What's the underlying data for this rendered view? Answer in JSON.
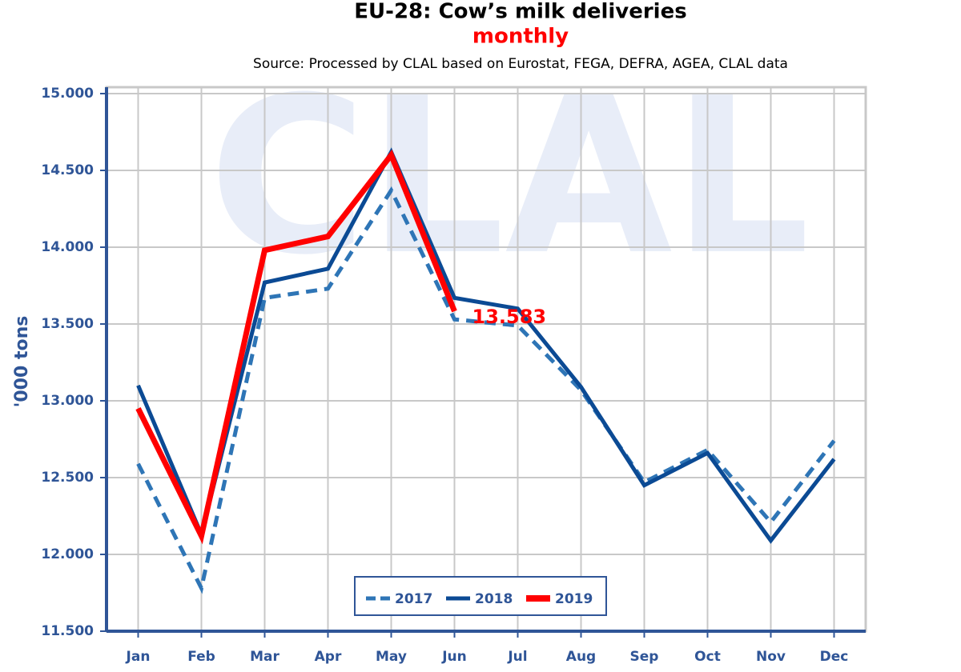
{
  "chart_data": {
    "type": "line",
    "title": "EU-28: Cow’s milk deliveries",
    "subtitle": "monthly",
    "source": "Source: Processed by CLAL based on Eurostat, FEGA, DEFRA, AGEA, CLAL data",
    "watermark": "CLAL",
    "y_label": "'000 tons",
    "categories": [
      "Jan",
      "Feb",
      "Mar",
      "Apr",
      "May",
      "Jun",
      "Jul",
      "Aug",
      "Sep",
      "Oct",
      "Nov",
      "Dec"
    ],
    "series": [
      {
        "name": "2017",
        "color": "#2e75b6",
        "line_style": "dashed",
        "values": [
          12590,
          11780,
          13670,
          13730,
          14370,
          13530,
          13490,
          13070,
          12470,
          12680,
          12210,
          12740
        ]
      },
      {
        "name": "2018",
        "color": "#0b4a94",
        "line_style": "solid",
        "values": [
          13100,
          12130,
          13770,
          13860,
          14620,
          13670,
          13600,
          13090,
          12450,
          12660,
          12090,
          12620
        ]
      },
      {
        "name": "2019",
        "color": "#ff0000",
        "line_style": "solid",
        "values": [
          12950,
          12120,
          13980,
          14070,
          14600,
          13583,
          null,
          null,
          null,
          null,
          null,
          null
        ],
        "value_labels": [
          null,
          null,
          null,
          null,
          null,
          "13.583",
          null,
          null,
          null,
          null,
          null,
          null
        ]
      }
    ],
    "ylim": [
      11500,
      15000
    ],
    "yticks": [
      {
        "value": 11500,
        "label": "11.500"
      },
      {
        "value": 12000,
        "label": "12.000"
      },
      {
        "value": 12500,
        "label": "12.500"
      },
      {
        "value": 13000,
        "label": "13.000"
      },
      {
        "value": 13500,
        "label": "13.500"
      },
      {
        "value": 14000,
        "label": "14.000"
      },
      {
        "value": 14500,
        "label": "14.500"
      },
      {
        "value": 15000,
        "label": "15.000"
      }
    ],
    "grid": true,
    "legend": "bottom"
  }
}
